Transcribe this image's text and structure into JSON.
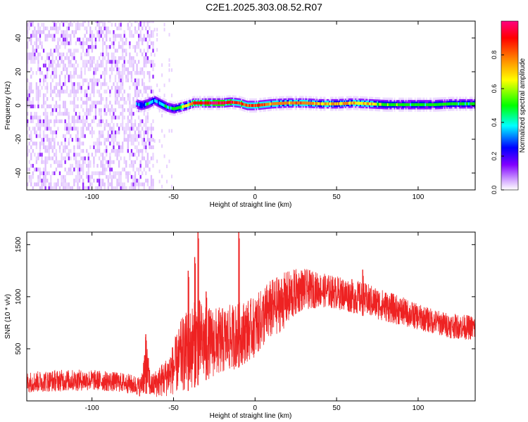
{
  "figure": {
    "title": "C2E1.2025.303.08.52.R07"
  },
  "chart_data": [
    {
      "type": "heatmap",
      "xlabel": "Height of straight line (km)",
      "ylabel": "Frequency (Hz)",
      "xlim": [
        -140,
        135
      ],
      "ylim": [
        -50,
        50
      ],
      "x_ticks": [
        -100,
        -50,
        0,
        50,
        100
      ],
      "x_tick_labels": [
        "-100",
        "-50",
        "0",
        "50",
        "100"
      ],
      "y_ticks": [
        -40,
        -20,
        0,
        20,
        40
      ],
      "y_tick_labels": [
        "-40",
        "-20",
        "0",
        "20",
        "40"
      ],
      "colorbar": {
        "label": "Normalized spectral amplitude",
        "range": [
          0,
          1
        ],
        "ticks": [
          0.0,
          0.2,
          0.4,
          0.6,
          0.8
        ],
        "tick_labels": [
          "0.0",
          "0.2",
          "0.4",
          "0.6",
          "0.8"
        ],
        "colors": [
          "#ffffff",
          "#d9b3ff",
          "#8000ff",
          "#0000ff",
          "#00ffff",
          "#00ff00",
          "#ffff00",
          "#ff8000",
          "#ff0000",
          "#ff0080"
        ]
      },
      "noise_region": {
        "x_range": [
          -140,
          -62
        ],
        "amplitude": 0.12
      },
      "ridge": {
        "x": [
          -73,
          -70,
          -66,
          -62,
          -58,
          -54,
          -50,
          -46,
          -42,
          -38,
          -30,
          -20,
          -15,
          -10,
          -5,
          0,
          5,
          10,
          20,
          30,
          40,
          50,
          60,
          70,
          80,
          90,
          100,
          110,
          120,
          135
        ],
        "freq": [
          1,
          0,
          1,
          3,
          1,
          -1,
          -2,
          -1,
          0,
          1.5,
          1.5,
          1.5,
          2,
          1.5,
          0,
          0,
          0.5,
          1,
          1.5,
          1.5,
          1,
          1,
          1.5,
          1,
          0.5,
          0.5,
          0.5,
          0.5,
          1,
          1
        ],
        "amp": [
          0.45,
          0.3,
          0.5,
          0.4,
          0.45,
          0.5,
          0.55,
          0.6,
          0.7,
          0.85,
          0.95,
          0.95,
          0.9,
          0.85,
          0.8,
          0.85,
          0.8,
          0.75,
          0.75,
          0.8,
          0.75,
          0.7,
          0.75,
          0.7,
          0.6,
          0.55,
          0.55,
          0.55,
          0.55,
          0.55
        ]
      }
    },
    {
      "type": "line",
      "xlabel": "Height of straight line (km)",
      "ylabel": "SNR (10 * v/v)",
      "xlim": [
        -140,
        135
      ],
      "ylim": [
        0,
        1620
      ],
      "x_ticks": [
        -100,
        -50,
        0,
        50,
        100
      ],
      "x_tick_labels": [
        "-100",
        "-50",
        "0",
        "50",
        "100"
      ],
      "y_ticks": [
        500,
        1000,
        1500
      ],
      "y_tick_labels": [
        "500",
        "1000",
        "1500"
      ],
      "series": [
        {
          "color": "#ee2222",
          "envelope": {
            "x": [
              -140,
              -120,
              -100,
              -80,
              -70,
              -67,
              -64,
              -55,
              -50,
              -45,
              -40,
              -35,
              -30,
              -20,
              -10,
              0,
              8,
              20,
              28,
              40,
              50,
              60,
              70,
              80,
              90,
              100,
              110,
              120,
              135
            ],
            "low": [
              80,
              90,
              100,
              80,
              40,
              70,
              30,
              40,
              60,
              80,
              100,
              150,
              200,
              250,
              320,
              420,
              560,
              720,
              860,
              900,
              880,
              840,
              800,
              760,
              720,
              680,
              640,
              600,
              580
            ],
            "high": [
              280,
              300,
              300,
              270,
              230,
              640,
              250,
              400,
              560,
              800,
              900,
              1000,
              900,
              900,
              950,
              1000,
              1150,
              1250,
              1280,
              1230,
              1200,
              1170,
              1120,
              1060,
              1000,
              930,
              880,
              840,
              820
            ]
          },
          "spikes": [
            {
              "x": -67,
              "y": 640
            },
            {
              "x": -41,
              "y": 1250
            },
            {
              "x": -37,
              "y": 1380
            },
            {
              "x": -35,
              "y": 1620
            },
            {
              "x": -30,
              "y": 1050
            },
            {
              "x": -10,
              "y": 1620
            },
            {
              "x": 66,
              "y": 1260
            }
          ]
        }
      ]
    }
  ]
}
